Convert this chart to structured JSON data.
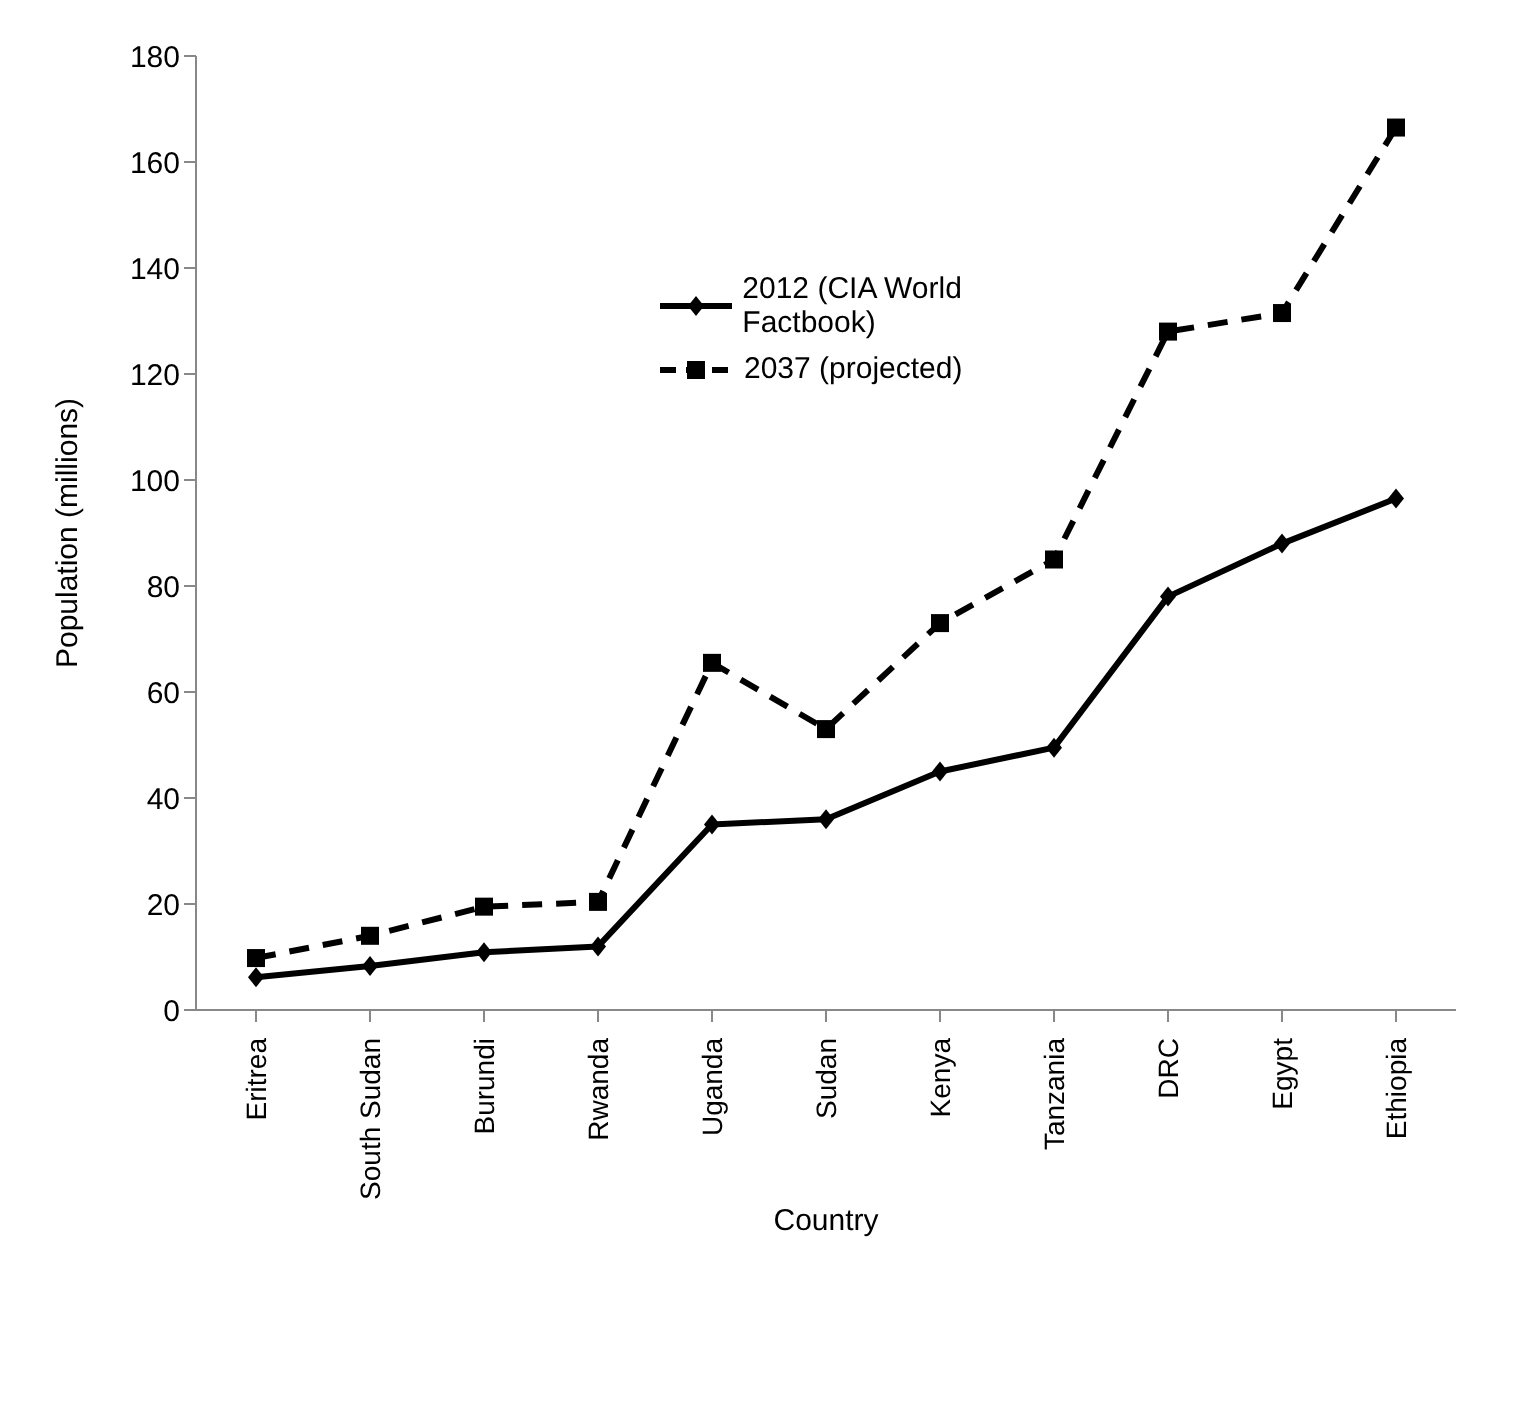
{
  "chart_data": {
    "type": "line",
    "xlabel": "Country",
    "ylabel": "Population (millions)",
    "categories": [
      "Eritrea",
      "South Sudan",
      "Burundi",
      "Rwanda",
      "Uganda",
      "Sudan",
      "Kenya",
      "Tanzania",
      "DRC",
      "Egypt",
      "Ethiopia"
    ],
    "series": [
      {
        "name": "2012 (CIA World Factbook)",
        "color": "#000000",
        "marker": "diamond",
        "line_style": "solid",
        "values": [
          6.2,
          8.3,
          10.9,
          12.0,
          35,
          36,
          45,
          49.5,
          78,
          88,
          96.5
        ]
      },
      {
        "name": "2037 (projected)",
        "color": "#000000",
        "marker": "square",
        "line_style": "dashed",
        "values": [
          9.8,
          14,
          19.5,
          20.4,
          65.5,
          53,
          73,
          85,
          128,
          131.5,
          166.5
        ]
      }
    ],
    "ylim": [
      0,
      180
    ],
    "yticks": [
      0,
      20,
      40,
      60,
      80,
      100,
      120,
      140,
      160,
      180
    ],
    "grid": false,
    "legend": "top"
  }
}
